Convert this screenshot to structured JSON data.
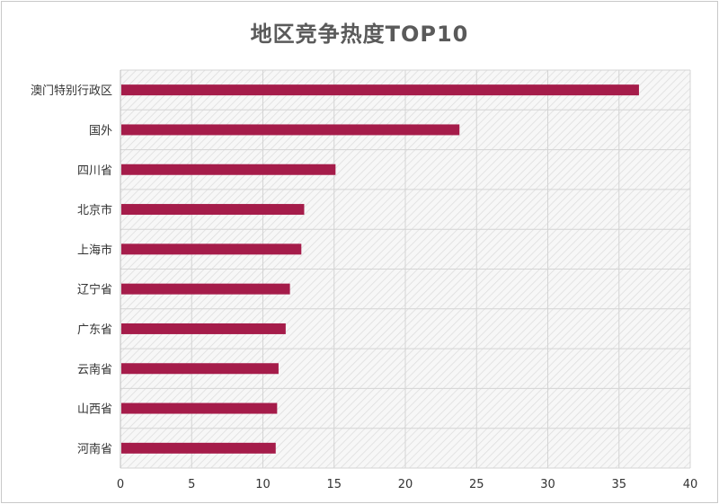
{
  "chart_data": {
    "type": "bar",
    "orientation": "horizontal",
    "title": "地区竞争热度TOP10",
    "categories": [
      "澳门特别行政区",
      "国外",
      "四川省",
      "北京市",
      "上海市",
      "辽宁省",
      "广东省",
      "云南省",
      "山西省",
      "河南省"
    ],
    "values": [
      36.4,
      23.8,
      15.1,
      12.9,
      12.7,
      11.9,
      11.6,
      11.1,
      11.0,
      10.9
    ],
    "xlim": [
      0,
      40
    ],
    "xticks": [
      0,
      5,
      10,
      15,
      20,
      25,
      30,
      35,
      40
    ],
    "xlabel": "",
    "ylabel": "",
    "grid": true,
    "legend": "none",
    "bar_color": "#a51c4a",
    "plot_background": "hatched"
  }
}
